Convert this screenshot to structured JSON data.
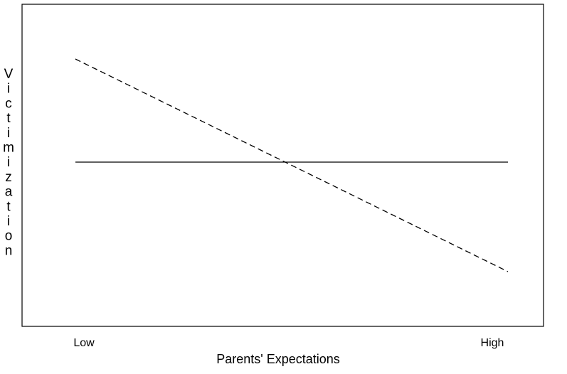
{
  "chart_data": {
    "type": "line",
    "title": "",
    "xlabel": "Parents' Expectations",
    "ylabel": "Victimization",
    "x_categories": [
      "Low",
      "High"
    ],
    "ylim": [
      0,
      10
    ],
    "grid": false,
    "legend": "none",
    "series": [
      {
        "style": "solid",
        "color": "#000000",
        "values": [
          5.1,
          5.1
        ]
      },
      {
        "style": "dashed",
        "color": "#000000",
        "values": [
          8.3,
          1.7
        ]
      }
    ]
  }
}
